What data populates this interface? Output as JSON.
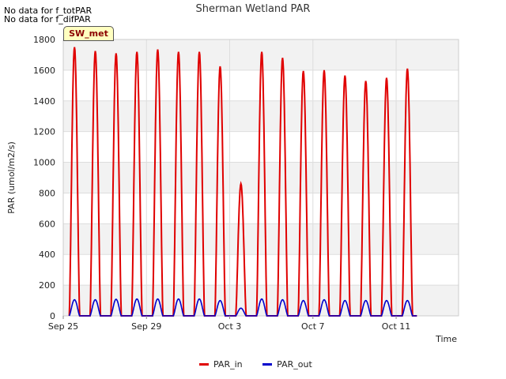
{
  "notes": [
    "No data for f_totPAR",
    "No data for f_difPAR"
  ],
  "badge": "SW_met",
  "chart_data": {
    "type": "line",
    "title": "Sherman Wetland PAR",
    "xlabel": "Time",
    "ylabel": "PAR (umol/m2/s)",
    "ylim": [
      0,
      1800
    ],
    "yticks": [
      0,
      200,
      400,
      600,
      800,
      1000,
      1200,
      1400,
      1600,
      1800
    ],
    "xlim": [
      "2016-09-25",
      "2016-10-14"
    ],
    "xticks": [
      {
        "label": "Sep 25",
        "date": "2016-09-25"
      },
      {
        "label": "Sep 29",
        "date": "2016-09-29"
      },
      {
        "label": "Oct 3",
        "date": "2016-10-03"
      },
      {
        "label": "Oct 7",
        "date": "2016-10-07"
      },
      {
        "label": "Oct 11",
        "date": "2016-10-11"
      }
    ],
    "grid": true,
    "legend": "bottom",
    "series": [
      {
        "name": "PAR_in",
        "color": "#e00000",
        "daily_peaks": [
          {
            "date": "2016-09-25",
            "peak": 1750
          },
          {
            "date": "2016-09-26",
            "peak": 1725
          },
          {
            "date": "2016-09-27",
            "peak": 1710
          },
          {
            "date": "2016-09-28",
            "peak": 1720
          },
          {
            "date": "2016-09-29",
            "peak": 1735
          },
          {
            "date": "2016-09-30",
            "peak": 1720
          },
          {
            "date": "2016-10-01",
            "peak": 1720
          },
          {
            "date": "2016-10-02",
            "peak": 1625
          },
          {
            "date": "2016-10-03",
            "peak": 860
          },
          {
            "date": "2016-10-04",
            "peak": 1720
          },
          {
            "date": "2016-10-05",
            "peak": 1680
          },
          {
            "date": "2016-10-06",
            "peak": 1595
          },
          {
            "date": "2016-10-07",
            "peak": 1600
          },
          {
            "date": "2016-10-08",
            "peak": 1565
          },
          {
            "date": "2016-10-09",
            "peak": 1530
          },
          {
            "date": "2016-10-10",
            "peak": 1550
          },
          {
            "date": "2016-10-11",
            "peak": 1610
          }
        ]
      },
      {
        "name": "PAR_out",
        "color": "#0000cc",
        "daily_peaks": [
          {
            "date": "2016-09-25",
            "peak": 105
          },
          {
            "date": "2016-09-26",
            "peak": 105
          },
          {
            "date": "2016-09-27",
            "peak": 108
          },
          {
            "date": "2016-09-28",
            "peak": 110
          },
          {
            "date": "2016-09-29",
            "peak": 110
          },
          {
            "date": "2016-09-30",
            "peak": 110
          },
          {
            "date": "2016-10-01",
            "peak": 110
          },
          {
            "date": "2016-10-02",
            "peak": 100
          },
          {
            "date": "2016-10-03",
            "peak": 50
          },
          {
            "date": "2016-10-04",
            "peak": 110
          },
          {
            "date": "2016-10-05",
            "peak": 105
          },
          {
            "date": "2016-10-06",
            "peak": 100
          },
          {
            "date": "2016-10-07",
            "peak": 105
          },
          {
            "date": "2016-10-08",
            "peak": 100
          },
          {
            "date": "2016-10-09",
            "peak": 100
          },
          {
            "date": "2016-10-10",
            "peak": 100
          },
          {
            "date": "2016-10-11",
            "peak": 100
          }
        ]
      }
    ]
  }
}
